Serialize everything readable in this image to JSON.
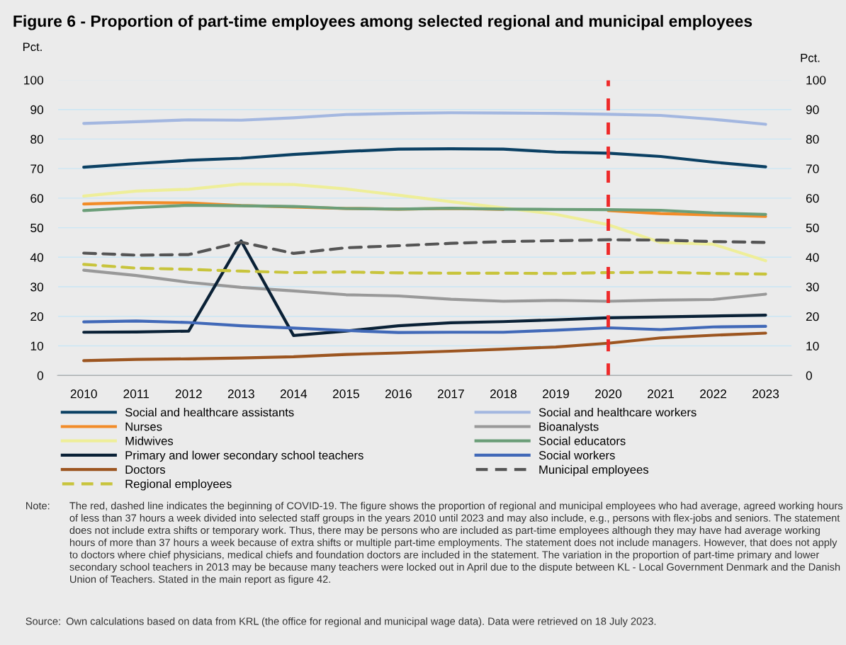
{
  "chart_data": {
    "type": "line",
    "title": "Figure 6 - Proportion of part-time employees among selected regional and municipal employees",
    "ylabel": "Pct.",
    "y2label": "Pct.",
    "categories": [
      "2010",
      "2011",
      "2012",
      "2013",
      "2014",
      "2015",
      "2016",
      "2017",
      "2018",
      "2019",
      "2020",
      "2021",
      "2022",
      "2023"
    ],
    "ylim": [
      0,
      100
    ],
    "yticks": [
      0,
      10,
      20,
      30,
      40,
      50,
      60,
      70,
      80,
      90,
      100
    ],
    "y2lim": [
      0,
      100
    ],
    "y2ticks": [
      0,
      10,
      20,
      30,
      40,
      50,
      60,
      70,
      80,
      90,
      100
    ],
    "grid": "y",
    "legend": "bottom",
    "marker": "none",
    "series": [
      {
        "name": "Social and healthcare assistants",
        "color": "#0b4063",
        "values": [
          70.5,
          71.7,
          72.8,
          73.5,
          74.8,
          75.8,
          76.6,
          76.7,
          76.6,
          75.6,
          75.2,
          74.1,
          72.2,
          70.6
        ]
      },
      {
        "name": "Social and healthcare workers",
        "color": "#a3b7e0",
        "values": [
          85.3,
          85.9,
          86.5,
          86.4,
          87.2,
          88.3,
          88.7,
          88.9,
          88.8,
          88.7,
          88.4,
          88.0,
          86.7,
          85.0
        ]
      },
      {
        "name": "Nurses",
        "color": "#f28c28",
        "values": [
          58.0,
          58.5,
          58.4,
          57.5,
          57.0,
          56.5,
          56.3,
          56.5,
          56.2,
          null,
          55.8,
          54.8,
          54.3,
          53.8
        ]
      },
      {
        "name": "Bioanalysts",
        "color": "#999999",
        "values": [
          35.6,
          33.8,
          31.5,
          29.8,
          28.6,
          27.3,
          26.9,
          25.8,
          25.1,
          25.4,
          25.1,
          25.5,
          25.7,
          27.5
        ]
      },
      {
        "name": "Midwives",
        "color": "#eeee99",
        "values": [
          60.7,
          62.4,
          63.0,
          64.8,
          64.6,
          63.1,
          61.0,
          58.8,
          56.7,
          54.5,
          51.0,
          45.0,
          44.4,
          38.8
        ]
      },
      {
        "name": "Social educators",
        "color": "#6b9e78",
        "values": [
          55.8,
          56.8,
          57.6,
          57.4,
          57.2,
          56.5,
          56.3,
          56.6,
          56.3,
          56.2,
          56.1,
          55.9,
          55.0,
          54.5
        ]
      },
      {
        "name": "Primary and lower secondary school teachers",
        "color": "#0a2136",
        "values": [
          14.6,
          14.7,
          15.0,
          45.5,
          13.5,
          15.0,
          16.8,
          17.8,
          18.2,
          18.8,
          19.5,
          19.8,
          20.1,
          20.4
        ]
      },
      {
        "name": "Social workers",
        "color": "#4169b8",
        "values": [
          18.1,
          18.4,
          17.9,
          16.8,
          16.0,
          15.2,
          14.5,
          14.6,
          14.6,
          15.3,
          16.1,
          15.5,
          16.4,
          16.6
        ]
      },
      {
        "name": "Doctors",
        "color": "#9c5520",
        "values": [
          5.0,
          5.4,
          5.6,
          5.9,
          6.3,
          7.1,
          7.6,
          8.2,
          8.9,
          9.6,
          10.9,
          12.7,
          13.6,
          14.3
        ]
      },
      {
        "name": "Municipal employees",
        "color": "#555555",
        "line_style": "dashed",
        "values": [
          41.4,
          40.7,
          40.9,
          45.1,
          41.3,
          43.2,
          43.9,
          44.7,
          45.3,
          45.6,
          45.9,
          45.8,
          45.3,
          45.0
        ]
      },
      {
        "name": "Regional employees",
        "color": "#c8c43c",
        "line_style": "dashed",
        "values": [
          37.6,
          36.3,
          35.9,
          35.3,
          34.8,
          35.0,
          34.7,
          34.6,
          34.6,
          34.5,
          34.8,
          34.9,
          34.5,
          34.3
        ]
      }
    ],
    "ref_lines": [
      {
        "axis": "x",
        "value": "2020",
        "color": "#ee2a2a",
        "line_style": "dashed"
      }
    ],
    "annotations": [
      "Note:",
      "The red, dashed line indicates the beginning of COVID-19. The figure shows the proportion of regional and municipal employees who had average, agreed working hours of less than 37 hours a week divided into selected staff groups in the years 2010 until 2023 and may also include, e.g., persons with flex-jobs and seniors. The statement does not include extra shifts or temporary work. Thus, there may be persons who are included as part-time employees although they may have had average working hours of more than 37 hours a week because of extra shifts or multiple part-time employments. The statement does not include managers. However, that does not apply to doctors where chief physicians, medical chiefs and foundation doctors are included in the statement. The variation in the proportion of part-time primary and lower secondary school teachers in 2013 may be because many teachers were locked out in April due to the dispute between KL - Local Government Denmark and the Danish Union of Teachers. Stated in the main report as figure 42.",
      "Source:",
      "Own calculations based on data from KRL (the office for regional and municipal wage data). Data were retrieved on 18 July 2023."
    ]
  }
}
